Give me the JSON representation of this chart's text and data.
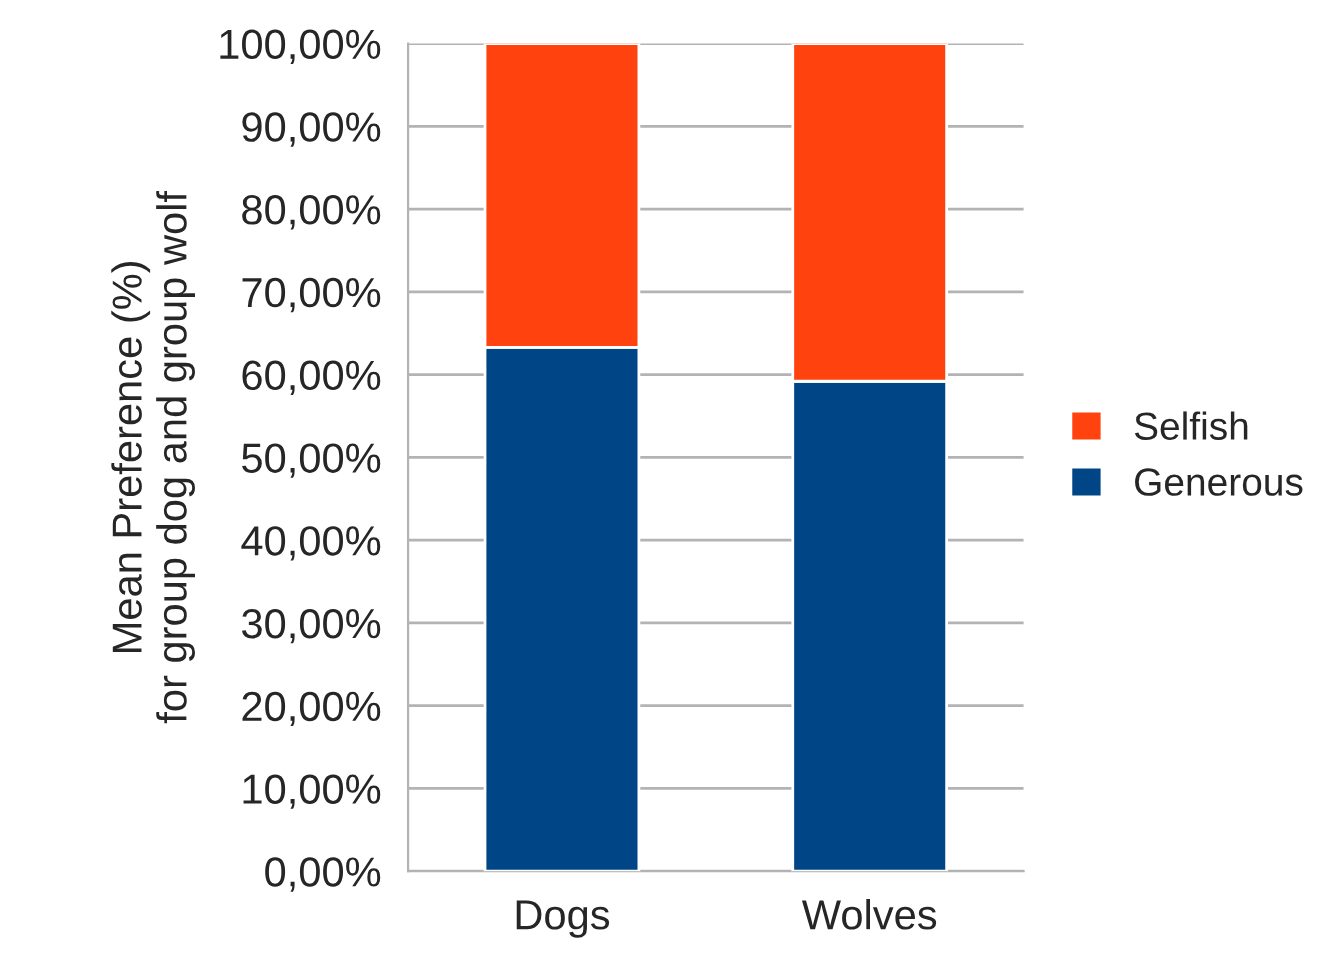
{
  "chart_data": {
    "type": "bar",
    "stacked": true,
    "ylabel": "Mean Preference (%)\nfor group dog and group wolf",
    "categories": [
      "Dogs",
      "Wolves"
    ],
    "series": [
      {
        "name": "Generous",
        "color": "#004586",
        "values": [
          63.3,
          59.2
        ]
      },
      {
        "name": "Selfish",
        "color": "#ff420e",
        "values": [
          36.7,
          40.8
        ]
      }
    ],
    "ylim": [
      0,
      100
    ],
    "yticks": [
      {
        "value": 0,
        "label": "0,00%"
      },
      {
        "value": 10,
        "label": "10,00%"
      },
      {
        "value": 20,
        "label": "20,00%"
      },
      {
        "value": 30,
        "label": "30,00%"
      },
      {
        "value": 40,
        "label": "40,00%"
      },
      {
        "value": 50,
        "label": "50,00%"
      },
      {
        "value": 60,
        "label": "60,00%"
      },
      {
        "value": 70,
        "label": "70,00%"
      },
      {
        "value": 80,
        "label": "80,00%"
      },
      {
        "value": 90,
        "label": "90,00%"
      },
      {
        "value": 100,
        "label": "100,00%"
      }
    ],
    "grid": "y",
    "legend": "right"
  }
}
